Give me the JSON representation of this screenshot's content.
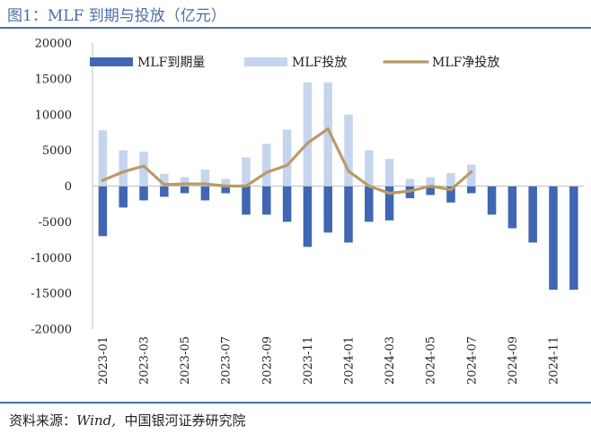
{
  "header": {
    "title": "图1：MLF 到期与投放（亿元）"
  },
  "footer": {
    "source_label": "资料来源：",
    "source_wind": "Wind,",
    "source_org": "中国银河证券研究院"
  },
  "colors": {
    "rule": "#4a6ea8",
    "maturity": "#4066b4",
    "issuance": "#c5d5ee",
    "net": "#b99a68"
  },
  "chart_data": {
    "type": "bar",
    "title": "MLF 到期与投放（亿元）",
    "xlabel": "",
    "ylabel": "",
    "ylim": [
      -20000,
      20000
    ],
    "yticks": [
      20000,
      15000,
      10000,
      5000,
      0,
      -5000,
      -10000,
      -15000,
      -20000
    ],
    "grid": false,
    "legend_position": "top",
    "categories": [
      "2023-01",
      "2023-02",
      "2023-03",
      "2023-04",
      "2023-05",
      "2023-06",
      "2023-07",
      "2023-08",
      "2023-09",
      "2023-10",
      "2023-11",
      "2023-12",
      "2024-01",
      "2024-02",
      "2024-03",
      "2024-04",
      "2024-05",
      "2024-06",
      "2024-07",
      "2024-08",
      "2024-09",
      "2024-10",
      "2024-11",
      "2024-12"
    ],
    "x_tick_labels": [
      "2023-01",
      "2023-03",
      "2023-05",
      "2023-07",
      "2023-09",
      "2023-11",
      "2024-01",
      "2024-03",
      "2024-05",
      "2024-07",
      "2024-09",
      "2024-11"
    ],
    "series": [
      {
        "name": "MLF到期量",
        "type": "bar",
        "values": [
          -7000,
          -3000,
          -2000,
          -1500,
          -1000,
          -2000,
          -1000,
          -4000,
          -4000,
          -5000,
          -8500,
          -6500,
          -7900,
          -5000,
          -4800,
          -1700,
          -1250,
          -2300,
          -1000,
          -4000,
          -5900,
          -7900,
          -14500,
          -14500
        ]
      },
      {
        "name": "MLF投放",
        "type": "bar",
        "values": [
          7800,
          5000,
          4800,
          1700,
          1250,
          2300,
          1000,
          4000,
          5900,
          7900,
          14500,
          14500,
          10000,
          5000,
          3800,
          1000,
          1250,
          1800,
          3000,
          null,
          null,
          null,
          null,
          null
        ]
      },
      {
        "name": "MLF净投放",
        "type": "line",
        "values": [
          800,
          2000,
          2800,
          200,
          300,
          300,
          0,
          0,
          1900,
          2900,
          6000,
          8000,
          2100,
          0,
          -1000,
          -700,
          0,
          -500,
          2000,
          null,
          null,
          null,
          null,
          null
        ]
      }
    ]
  }
}
